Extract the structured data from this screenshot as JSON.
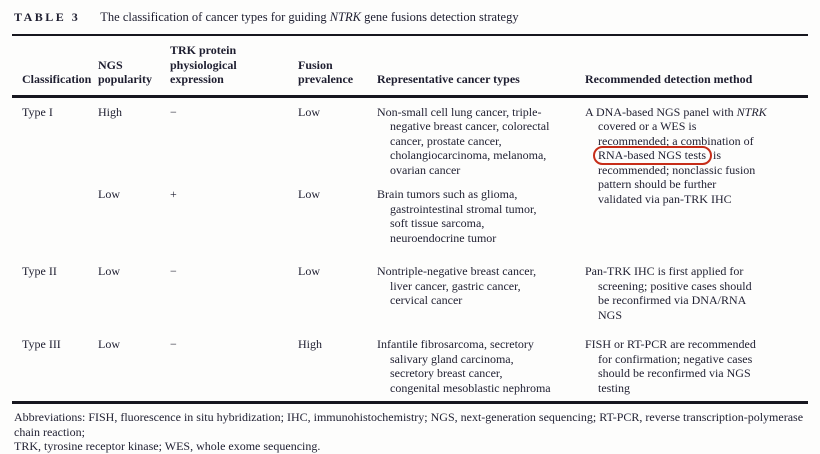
{
  "title": {
    "label": "TABLE 3",
    "caption_pre": "The classification of cancer types for guiding ",
    "caption_italic": "NTRK",
    "caption_post": " gene fusions detection strategy"
  },
  "columns": [
    "Classification",
    "NGS popularity",
    "TRK protein physiological expression",
    "Fusion prevalence",
    "Representative cancer types",
    "Recommended detection method"
  ],
  "rows": [
    {
      "classification": "Type I",
      "ngs_popularity": "High",
      "trk_expression": "−",
      "fusion_prevalence": "Low",
      "cancer_types_lines": [
        "Non-small cell lung cancer, triple-",
        "negative breast cancer, colorectal",
        "cancer, prostate cancer,",
        "cholangiocarcinoma, melanoma,",
        "ovarian cancer"
      ],
      "method": {
        "line1_pre": "A DNA-based NGS panel with ",
        "line1_italic": "NTRK",
        "line2": "covered or a WES is",
        "line3": "recommended; a combination of",
        "line4_boxed": "RNA-based NGS tests",
        "line4_post": " is",
        "line5": "recommended; nonclassic fusion",
        "line6": "pattern should be further",
        "line7": "validated via pan-TRK IHC"
      }
    },
    {
      "classification": "",
      "ngs_popularity": "Low",
      "trk_expression": "+",
      "fusion_prevalence": "Low",
      "cancer_types_lines": [
        "Brain tumors such as glioma,",
        "gastrointestinal stromal tumor,",
        "soft tissue sarcoma,",
        "neuroendocrine tumor"
      ]
    },
    {
      "classification": "Type II",
      "ngs_popularity": "Low",
      "trk_expression": "−",
      "fusion_prevalence": "Low",
      "cancer_types_lines": [
        "Nontriple-negative breast cancer,",
        "liver cancer, gastric cancer,",
        "cervical cancer"
      ],
      "method_lines": [
        "Pan-TRK IHC is first applied for",
        "screening; positive cases should",
        "be reconfirmed via DNA/RNA",
        "NGS"
      ]
    },
    {
      "classification": "Type III",
      "ngs_popularity": "Low",
      "trk_expression": "−",
      "fusion_prevalence": "High",
      "cancer_types_lines": [
        "Infantile fibrosarcoma, secretory",
        "salivary gland carcinoma,",
        "secretory breast cancer,",
        "congenital mesoblastic nephroma"
      ],
      "method_lines": [
        "FISH or RT-PCR are recommended",
        "for confirmation; negative cases",
        "should be reconfirmed via NGS",
        "testing"
      ]
    }
  ],
  "annotation": {
    "highlighted_text": "RNA-based NGS tests",
    "color": "#c62d19",
    "shape": "red-rounded-box"
  },
  "footnote_lines": [
    "Abbreviations: FISH, fluorescence in situ hybridization; IHC, immunohistochemistry; NGS, next-generation sequencing; RT-PCR, reverse transcription-polymerase chain reaction;",
    "TRK, tyrosine receptor kinase; WES, whole exome sequencing."
  ]
}
